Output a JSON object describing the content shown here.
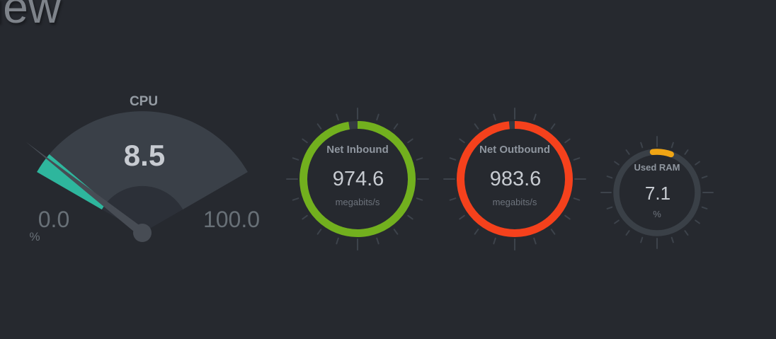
{
  "page": {
    "heading_visible_text": "iew"
  },
  "colors": {
    "background": "#26292f",
    "cpu_value_fill": "#2eb69d",
    "net_inbound_ring": "#72b01e",
    "net_outbound_ring": "#f5411c",
    "used_ram_arc": "#f0a514"
  },
  "gauges": {
    "cpu": {
      "title": "CPU",
      "value": "8.5",
      "min_label": "0.0",
      "max_label": "100.0",
      "unit": "%"
    },
    "net_inbound": {
      "title": "Net Inbound",
      "value": "974.6",
      "unit": "megabits/s"
    },
    "net_outbound": {
      "title": "Net Outbound",
      "value": "983.6",
      "unit": "megabits/s"
    },
    "used_ram": {
      "title": "Used RAM",
      "value": "7.1",
      "unit": "%"
    }
  },
  "chart_data": [
    {
      "type": "gauge",
      "style": "meter-fan-with-needle",
      "title": "CPU",
      "value": 8.5,
      "min": 0.0,
      "max": 100.0,
      "unit": "%",
      "value_color": "#2eb69d",
      "track_color": "#3a4048"
    },
    {
      "type": "gauge",
      "style": "circle-ring",
      "title": "Net Inbound",
      "value": 974.6,
      "unit": "megabits/s",
      "fraction_filled": 0.975,
      "color": "#72b01e"
    },
    {
      "type": "gauge",
      "style": "circle-ring",
      "title": "Net Outbound",
      "value": 983.6,
      "unit": "megabits/s",
      "fraction_filled": 0.984,
      "color": "#f5411c"
    },
    {
      "type": "gauge",
      "style": "circle-ring",
      "title": "Used RAM",
      "value": 7.1,
      "unit": "%",
      "fraction_filled": 0.071,
      "color": "#f0a514"
    }
  ]
}
